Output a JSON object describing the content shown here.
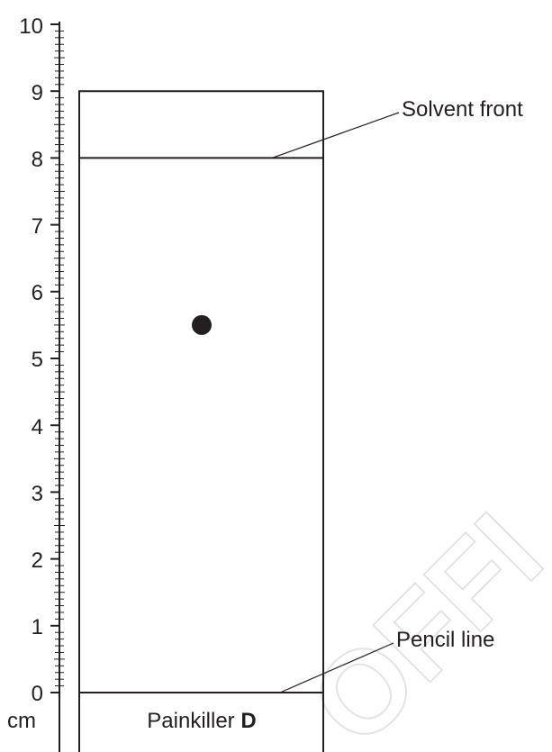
{
  "ruler": {
    "unit": "cm",
    "min": 0,
    "max": 10,
    "major_tick_labels": [
      "0",
      "1",
      "2",
      "3",
      "4",
      "5",
      "6",
      "7",
      "8",
      "9",
      "10"
    ]
  },
  "chromatogram": {
    "sample_prefix": "Painkiller ",
    "sample_letter": "D",
    "pencil_line_label": "Pencil line",
    "solvent_front_label": "Solvent front",
    "pencil_line_cm": 0,
    "solvent_front_cm": 8,
    "paper_top_cm": 9,
    "spot_cm": 5.5
  },
  "watermark": {
    "text": "OFFI"
  }
}
